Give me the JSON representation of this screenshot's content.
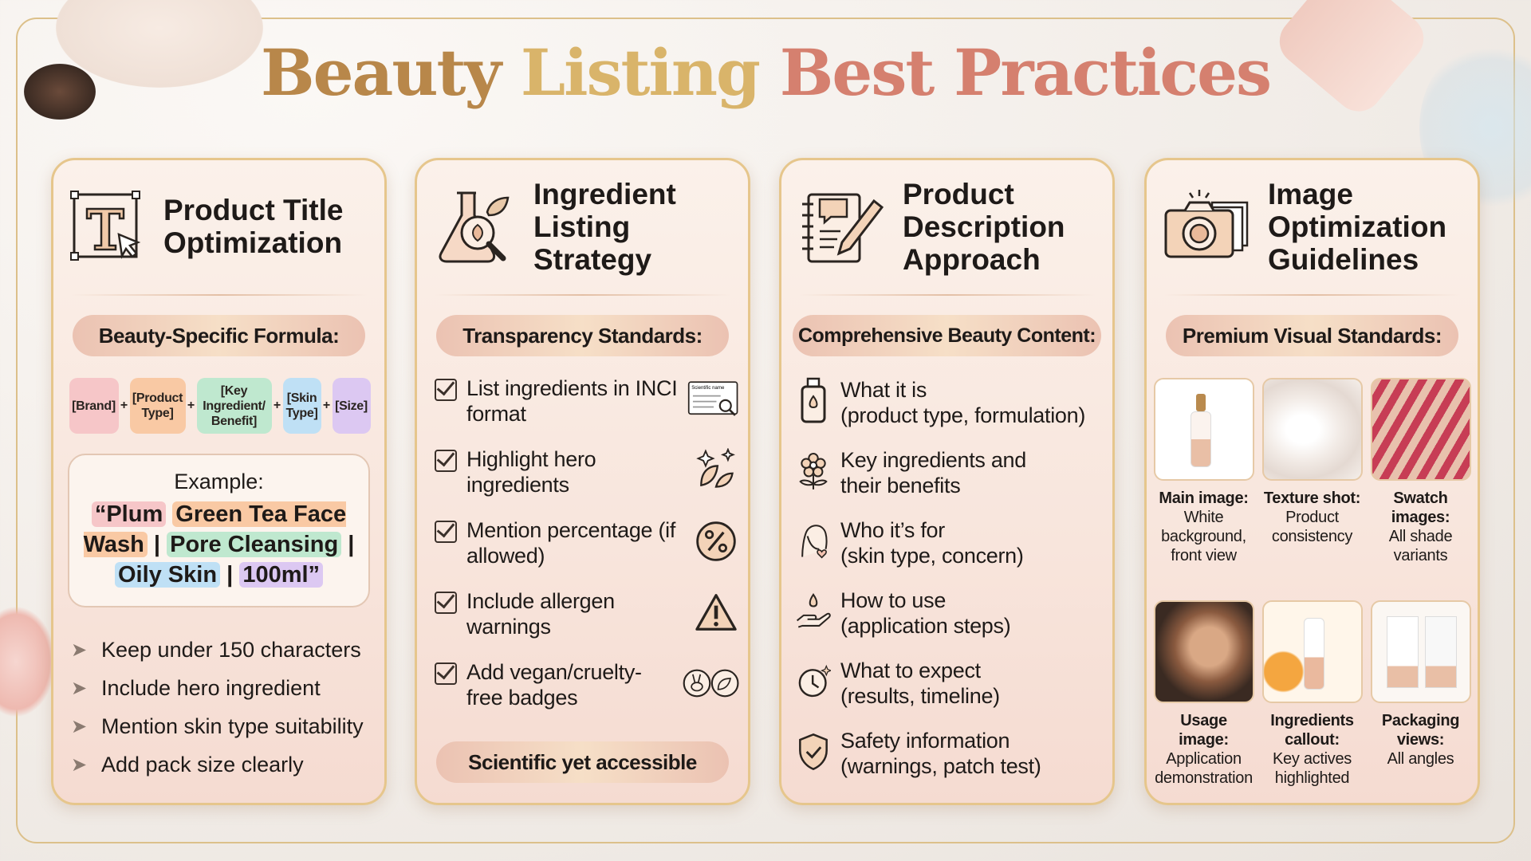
{
  "title": {
    "part1": "Beauty",
    "part2": "Listing",
    "part3": "Best Practices"
  },
  "colors": {
    "gold": "#b8874a",
    "light_gold": "#d9b46a",
    "rose": "#d5806f",
    "card_border": "#e6c68c"
  },
  "cards": [
    {
      "title": "Product Title Optimization",
      "icon": "title-text-cursor-icon",
      "pill": "Beauty-Specific Formula:",
      "formula": [
        {
          "label": "[Brand]",
          "color": "#f6c6c8"
        },
        {
          "label": "[Product Type]",
          "color": "#f9c9a4"
        },
        {
          "label": "[Key Ingredient/ Benefit]",
          "color": "#bfe8cf"
        },
        {
          "label": "[Skin Type]",
          "color": "#bfe0f5"
        },
        {
          "label": "[Size]",
          "color": "#dcc8f2"
        }
      ],
      "plus": "+",
      "example_label": "Example:",
      "example": [
        {
          "text": "“Plum",
          "color": "#f6c6c8"
        },
        {
          "text": "Green Tea Face Wash",
          "color": "#f9c9a4"
        },
        {
          "text": "Pore Cleansing",
          "color": "#bfe8cf"
        },
        {
          "text": "Oily Skin",
          "color": "#bfe0f5"
        },
        {
          "text": "100ml”",
          "color": "#dcc8f2"
        }
      ],
      "sep": "|",
      "bullets": [
        "Keep under 150 characters",
        "Include hero ingredient",
        "Mention skin type suitability",
        "Add pack size clearly"
      ]
    },
    {
      "title": "Ingredient Listing Strategy",
      "icon": "flask-magnifier-leaf-icon",
      "pill": "Transparency Standards:",
      "items": [
        {
          "text": "List ingredients in INCI format",
          "icon": "scientific-name-label-icon",
          "icon_text": "Scientific name"
        },
        {
          "text": "Highlight hero ingredients",
          "icon": "sparkle-leaf-icon"
        },
        {
          "text": "Mention percentage (if allowed)",
          "icon": "percent-badge-icon"
        },
        {
          "text": "Include allergen warnings",
          "icon": "warning-triangle-icon"
        },
        {
          "text": "Add vegan/cruelty-free badges",
          "icon": "bunny-leaf-badges-icon"
        }
      ],
      "footer": "Scientific yet accessible"
    },
    {
      "title": "Product Description Approach",
      "icon": "notebook-pen-icon",
      "pill": "Comprehensive Beauty Content:",
      "items": [
        {
          "title": "What it is",
          "sub": "(product type, formulation)",
          "icon": "bottle-drop-icon"
        },
        {
          "title": "Key ingredients and",
          "sub": "their benefits",
          "icon": "flower-icon"
        },
        {
          "title": "Who it’s for",
          "sub": "(skin type, concern)",
          "icon": "woman-face-icon"
        },
        {
          "title": "How to use",
          "sub": "(application steps)",
          "icon": "hand-drop-icon"
        },
        {
          "title": "What to expect",
          "sub": "(results, timeline)",
          "icon": "clock-sparkle-icon"
        },
        {
          "title": "Safety information",
          "sub": "(warnings, patch test)",
          "icon": "shield-check-icon"
        }
      ]
    },
    {
      "title": "Image Optimization Guidelines",
      "icon": "camera-photos-icon",
      "pill": "Premium Visual Standards:",
      "images": [
        {
          "title": "Main image:",
          "desc": "White background, front view",
          "icon": "serum-bottle-image"
        },
        {
          "title": "Texture shot:",
          "desc": "Product consistency",
          "icon": "cream-texture-image"
        },
        {
          "title": "Swatch images:",
          "desc": "All shade variants",
          "icon": "lipstick-swatch-image"
        },
        {
          "title": "Usage image:",
          "desc": "Application demonstration",
          "icon": "woman-applying-image"
        },
        {
          "title": "Ingredients callout:",
          "desc": "Key actives highlighted",
          "icon": "vitamin-c-serum-image"
        },
        {
          "title": "Packaging views:",
          "desc": "All angles",
          "icon": "packaging-box-image"
        }
      ]
    }
  ]
}
